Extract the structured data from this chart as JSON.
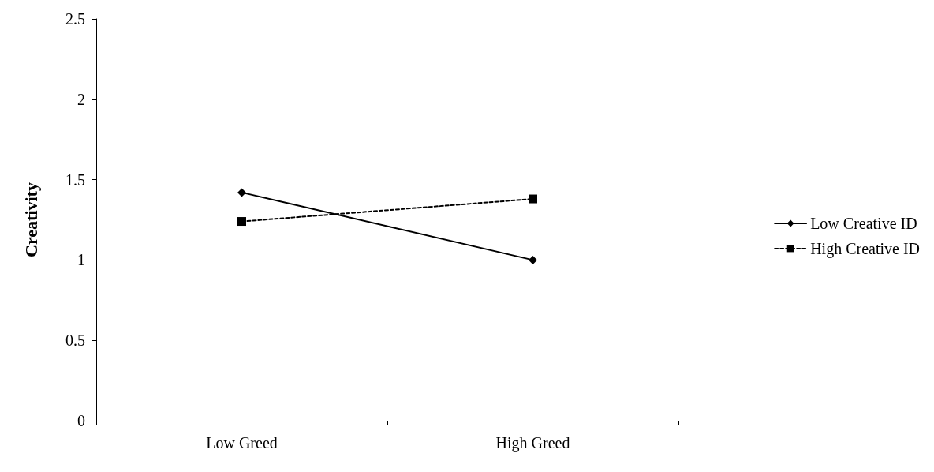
{
  "chart_data": {
    "type": "line",
    "ylabel": "Creativity",
    "categories": [
      "Low Greed",
      "High Greed"
    ],
    "series": [
      {
        "name": "Low Creative ID",
        "color": "#000000",
        "values": [
          1.42,
          1.0
        ],
        "marker": "diamond",
        "line_style": "solid"
      },
      {
        "name": "High Creative ID",
        "color": "#000000",
        "values": [
          1.24,
          1.38
        ],
        "marker": "square",
        "line_style": "dashed"
      }
    ],
    "ylim": [
      0,
      2.5
    ],
    "yticks": [
      0,
      0.5,
      1,
      1.5,
      2,
      2.5
    ],
    "grid": false,
    "legend": "right"
  }
}
